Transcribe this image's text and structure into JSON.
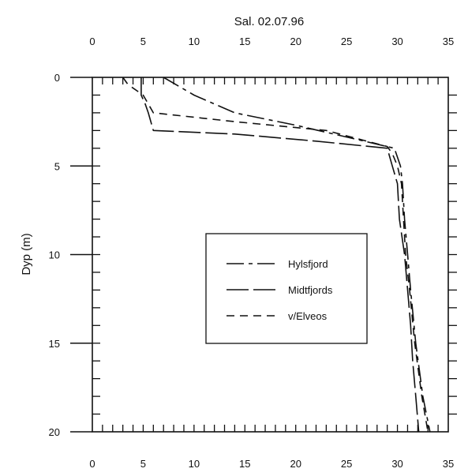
{
  "chart_data": {
    "type": "line",
    "title": "Sal.  02.07.96",
    "xlabel": "",
    "ylabel": "Dyp (m)",
    "xlim": [
      0,
      35
    ],
    "ylim": [
      0,
      20
    ],
    "y_inverted": true,
    "x_ticks": [
      0,
      5,
      10,
      15,
      20,
      25,
      30,
      35
    ],
    "y_ticks": [
      0,
      5,
      10,
      15,
      20
    ],
    "x_axis_top_and_bottom": true,
    "grid": false,
    "legend_position": "center-right",
    "series": [
      {
        "name": "Hylsfjord",
        "style": "long-dash-short-dash",
        "color": "#111111",
        "points": [
          [
            7,
            0
          ],
          [
            10,
            1
          ],
          [
            14,
            2
          ],
          [
            20,
            2.7
          ],
          [
            26,
            3.5
          ],
          [
            29.7,
            4
          ],
          [
            30.3,
            5
          ],
          [
            30.5,
            6
          ],
          [
            30.7,
            8
          ],
          [
            31,
            10
          ],
          [
            31.3,
            12
          ],
          [
            31.8,
            15
          ],
          [
            32.5,
            18
          ],
          [
            33.2,
            20
          ]
        ]
      },
      {
        "name": "Midtfjords",
        "style": "long-dash",
        "color": "#111111",
        "points": [
          [
            4.8,
            0
          ],
          [
            4.8,
            1
          ],
          [
            5.2,
            1.5
          ],
          [
            5.5,
            2
          ],
          [
            6,
            3
          ],
          [
            14,
            3.2
          ],
          [
            22,
            3.6
          ],
          [
            29,
            4
          ],
          [
            29.5,
            5
          ],
          [
            30,
            6
          ],
          [
            30.2,
            8
          ],
          [
            30.7,
            10
          ],
          [
            31,
            12
          ],
          [
            31.3,
            14
          ],
          [
            31.5,
            16
          ],
          [
            31.8,
            18
          ],
          [
            32.1,
            20
          ]
        ]
      },
      {
        "name": "v/Elveos",
        "style": "short-dash",
        "color": "#111111",
        "points": [
          [
            3,
            0
          ],
          [
            3.5,
            0.4
          ],
          [
            4.5,
            0.8
          ],
          [
            5,
            1
          ],
          [
            5.5,
            1.5
          ],
          [
            6,
            2
          ],
          [
            14,
            2.5
          ],
          [
            23,
            3
          ],
          [
            29,
            3.9
          ],
          [
            29.5,
            4.3
          ],
          [
            30,
            5
          ],
          [
            30.4,
            6
          ],
          [
            30.6,
            8
          ],
          [
            30.8,
            10
          ],
          [
            31.2,
            12
          ],
          [
            31.7,
            15
          ],
          [
            32.4,
            18
          ],
          [
            33,
            20
          ]
        ]
      }
    ]
  }
}
